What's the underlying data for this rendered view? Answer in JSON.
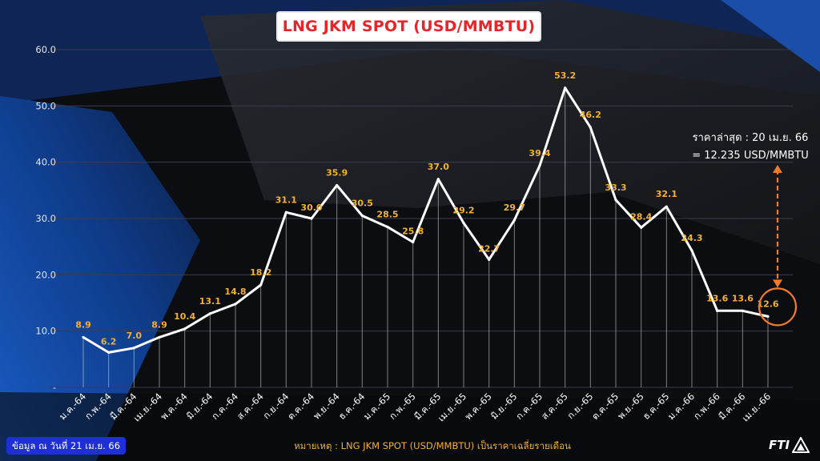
{
  "chart_data": {
    "type": "line",
    "title": "LNG JKM SPOT (USD/MMBTU)",
    "categories": [
      "ม.ค.-64",
      "ก.พ.-64",
      "มี.ค.-64",
      "เม.ย.-64",
      "พ.ค.-64",
      "มิ.ย.-64",
      "ก.ค.-64",
      "ส.ค.-64",
      "ก.ย.-64",
      "ต.ค.-64",
      "พ.ย.-64",
      "ธ.ค.-64",
      "ม.ค.-65",
      "ก.พ.-65",
      "มี.ค.-65",
      "เม.ย.-65",
      "พ.ค.-65",
      "มิ.ย.-65",
      "ก.ค.-65",
      "ส.ค.-65",
      "ก.ย.-65",
      "ต.ค.-65",
      "พ.ย.-65",
      "ธ.ค.-65",
      "ม.ค.-66",
      "ก.พ.-66",
      "มี.ค.-66",
      "เม.ย.-66"
    ],
    "values": [
      8.9,
      6.2,
      7.0,
      8.9,
      10.4,
      13.1,
      14.8,
      18.2,
      31.1,
      30.0,
      35.9,
      30.5,
      28.5,
      25.8,
      37.0,
      29.2,
      22.7,
      29.7,
      39.4,
      53.2,
      46.2,
      33.3,
      28.4,
      32.1,
      24.3,
      13.6,
      13.6,
      12.6
    ],
    "data_labels": [
      "8.9",
      "6.2",
      "7.0",
      "8.9",
      "10.4",
      "13.1",
      "14.8",
      "18.2",
      "31.1",
      "30.0",
      "35.9",
      "30.5",
      "28.5",
      "25.8",
      "37.0",
      "29.2",
      "22.7",
      "29.7",
      "39.4",
      "53.2",
      "46.2",
      "33.3",
      "28.4",
      "32.1",
      "24.3",
      "13.6",
      "13.6",
      "12.6"
    ],
    "yticks": [
      "60.0",
      "50.0",
      "40.0",
      "30.0",
      "20.0",
      "10.0",
      "-"
    ],
    "ylim": [
      0,
      60
    ],
    "xlabel": "",
    "ylabel": "",
    "grid": true,
    "legend": "none",
    "colors": {
      "line": "#ffffff",
      "labels": "#f2b134",
      "highlight": "#ef7b2f",
      "drop_lines": "#d9d9d9",
      "grid": "#3a3d47"
    }
  },
  "annotation": {
    "line1": "ราคาล่าสุด : 20 เม.ย. 66",
    "line2": "= 12.235 USD/MMBTU"
  },
  "data_note": "ข้อมูล ณ วันที่ 21 เม.ย. 66",
  "footnote": "หมายเหตุ : LNG JKM SPOT (USD/MMBTU) เป็นราคาเฉลี่ยรายเดือน",
  "logo_text": "FTI"
}
